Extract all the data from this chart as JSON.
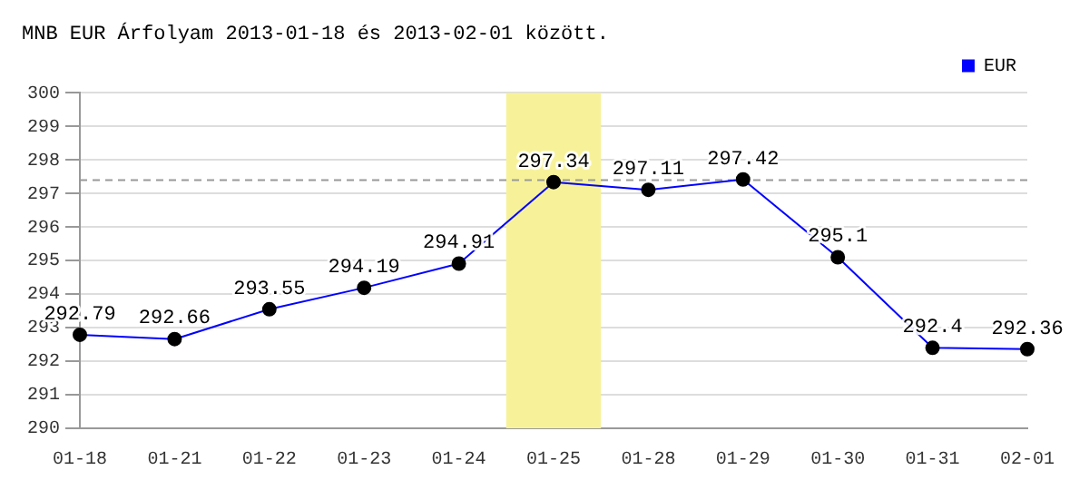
{
  "chart_data": {
    "type": "line",
    "title": "MNB EUR Árfolyam 2013-01-18 és 2013-02-01 között.",
    "categories": [
      "01-18",
      "01-21",
      "01-22",
      "01-23",
      "01-24",
      "01-25",
      "01-28",
      "01-29",
      "01-30",
      "01-31",
      "02-01"
    ],
    "series": [
      {
        "name": "EUR",
        "color": "#0000ff",
        "values": [
          292.79,
          292.66,
          293.55,
          294.19,
          294.91,
          297.34,
          297.11,
          297.42,
          295.1,
          292.4,
          292.36
        ]
      }
    ],
    "ylim": [
      290,
      300
    ],
    "yticks": [
      290,
      291,
      292,
      293,
      294,
      295,
      296,
      297,
      298,
      299,
      300
    ],
    "grid": "y",
    "legend": "top right",
    "marker": "circle",
    "line_style": "solid",
    "data_labels": true,
    "ref_lines": [
      {
        "axis": "y",
        "value": 297.4,
        "color": "#999999",
        "line_style": "dashed"
      }
    ],
    "bands": [
      {
        "axis": "x",
        "from": "01-25",
        "to": "01-25",
        "color": "#f7f29a"
      }
    ]
  }
}
